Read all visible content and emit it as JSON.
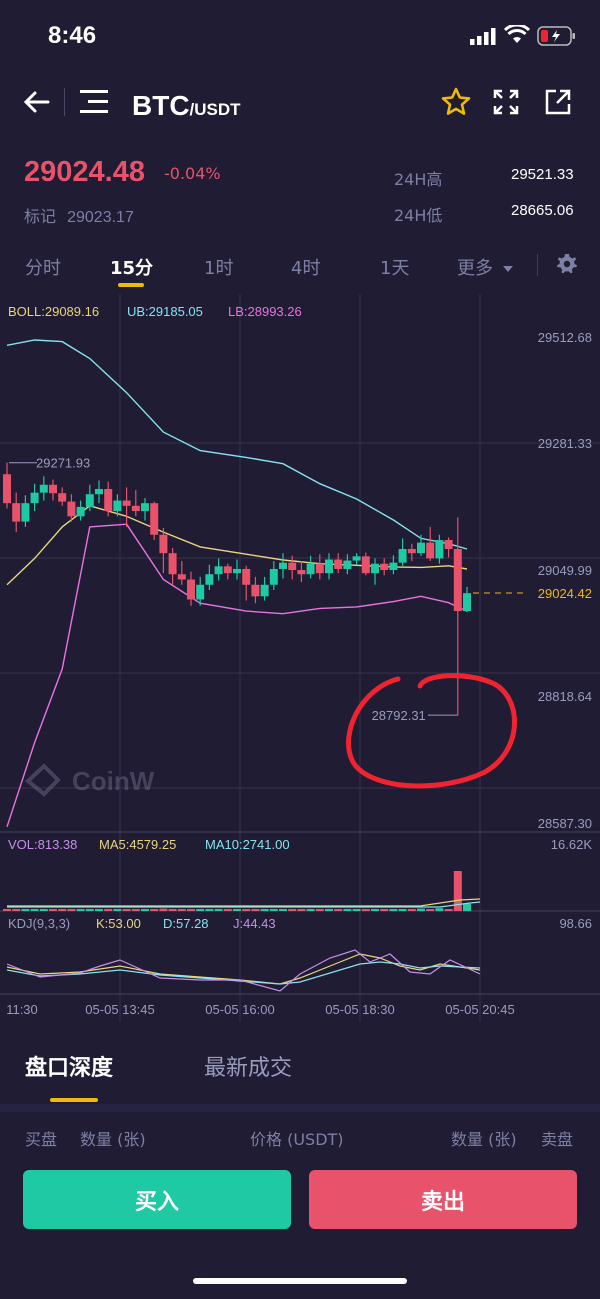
{
  "status_bar": {
    "time": "8:46"
  },
  "header": {
    "pair_base": "BTC",
    "pair_quote": "/USDT"
  },
  "ticker": {
    "last_price": "29024.48",
    "change_pct": "-0.04%",
    "mark_label": "标记",
    "mark_price": "29023.17",
    "high_label": "24H高",
    "high_value": "29521.33",
    "low_label": "24H低",
    "low_value": "28665.06"
  },
  "interval_tabs": [
    {
      "label": "分时"
    },
    {
      "label": "15分",
      "active": true
    },
    {
      "label": "1时"
    },
    {
      "label": "4时"
    },
    {
      "label": "1天"
    },
    {
      "label": "更多"
    }
  ],
  "chart_data": {
    "type": "candlestick",
    "boll": {
      "label": "BOLL:29089.16",
      "ub": "UB:29185.05",
      "lb": "LB:28993.26"
    },
    "price_axis": [
      "29512.68",
      "29281.33",
      "29049.99",
      "28818.64",
      "28587.30"
    ],
    "price_range": [
      28587.3,
      29512.68
    ],
    "last_price_tag": "29024.42",
    "max_label": "29271.93",
    "min_label": "28792.31",
    "watermark": "CoinW",
    "volume": {
      "vol": "VOL:813.38",
      "ma5": "MA5:4579.25",
      "ma10": "MA10:2741.00",
      "max": "16.62K"
    },
    "kdj": {
      "label": "KDJ(9,3,3)",
      "k": "K:53.00",
      "d": "D:57.28",
      "j": "J:44.43",
      "max": "98.66"
    },
    "time_axis": [
      "11:30",
      "05-05 13:45",
      "05-05 16:00",
      "05-05 18:30",
      "05-05 20:45"
    ],
    "candles": [
      [
        29250,
        29195,
        29272,
        29185
      ],
      [
        29195,
        29160,
        29215,
        29140
      ],
      [
        29160,
        29195,
        29210,
        29150
      ],
      [
        29195,
        29215,
        29232,
        29180
      ],
      [
        29215,
        29230,
        29246,
        29200
      ],
      [
        29230,
        29214,
        29240,
        29200
      ],
      [
        29214,
        29198,
        29225,
        29190
      ],
      [
        29198,
        29170,
        29212,
        29160
      ],
      [
        29170,
        29188,
        29200,
        29162
      ],
      [
        29188,
        29212,
        29230,
        29180
      ],
      [
        29212,
        29222,
        29238,
        29195
      ],
      [
        29222,
        29180,
        29236,
        29170
      ],
      [
        29180,
        29200,
        29212,
        29170
      ],
      [
        29200,
        29190,
        29225,
        29150
      ],
      [
        29190,
        29180,
        29220,
        29170
      ],
      [
        29180,
        29195,
        29205,
        29162
      ],
      [
        29195,
        29135,
        29198,
        29125
      ],
      [
        29135,
        29100,
        29148,
        29062
      ],
      [
        29100,
        29060,
        29110,
        29040
      ],
      [
        29060,
        29050,
        29085,
        29040
      ],
      [
        29050,
        29012,
        29065,
        29000
      ],
      [
        29012,
        29040,
        29055,
        29000
      ],
      [
        29040,
        29060,
        29078,
        29030
      ],
      [
        29060,
        29075,
        29090,
        29048
      ],
      [
        29075,
        29062,
        29080,
        29050
      ],
      [
        29062,
        29070,
        29088,
        29050
      ],
      [
        29070,
        29040,
        29076,
        29010
      ],
      [
        29040,
        29018,
        29055,
        29005
      ],
      [
        29018,
        29040,
        29055,
        29010
      ],
      [
        29040,
        29070,
        29085,
        29030
      ],
      [
        29070,
        29082,
        29100,
        29052
      ],
      [
        29082,
        29068,
        29095,
        29050
      ],
      [
        29068,
        29060,
        29085,
        29045
      ],
      [
        29060,
        29080,
        29095,
        29052
      ],
      [
        29080,
        29062,
        29098,
        29050
      ],
      [
        29062,
        29088,
        29100,
        29050
      ],
      [
        29088,
        29070,
        29100,
        29062
      ],
      [
        29070,
        29086,
        29098,
        29060
      ],
      [
        29086,
        29094,
        29100,
        29078
      ],
      [
        29094,
        29062,
        29101,
        29058
      ],
      [
        29062,
        29080,
        29090,
        29040
      ],
      [
        29080,
        29068,
        29090,
        29058
      ],
      [
        29068,
        29082,
        29096,
        29060
      ],
      [
        29082,
        29108,
        29128,
        29076
      ],
      [
        29108,
        29100,
        29118,
        29085
      ],
      [
        29100,
        29120,
        29135,
        29095
      ],
      [
        29120,
        29090,
        29150,
        29085
      ],
      [
        29090,
        29125,
        29135,
        29080
      ],
      [
        29125,
        29108,
        29130,
        29092
      ],
      [
        29108,
        28990,
        29168,
        28792
      ],
      [
        28990,
        29024,
        29036,
        28988
      ]
    ],
    "bb_upper": [
      29495,
      29505,
      29502,
      29470,
      29405,
      29330,
      29295,
      29282,
      29270,
      29232,
      29203,
      29163,
      29128,
      29118,
      29108
    ],
    "bb_middle": [
      29040,
      29090,
      29150,
      29190,
      29170,
      29140,
      29112,
      29098,
      29087,
      29080,
      29077,
      29074,
      29073,
      29076,
      29070
    ],
    "bb_lower": [
      28580,
      28740,
      28880,
      29150,
      29155,
      29050,
      29005,
      28990,
      28985,
      28995,
      28998,
      29008,
      29018,
      29006,
      28990
    ],
    "bb_x": [
      0,
      3,
      6,
      9,
      13,
      17,
      21,
      26,
      30,
      34,
      38,
      42,
      45,
      48,
      50
    ],
    "volume_bars": [
      0.04,
      0.03,
      0.03,
      0.03,
      0.03,
      0.03,
      0.03,
      0.03,
      0.03,
      0.03,
      0.03,
      0.03,
      0.03,
      0.03,
      0.03,
      0.03,
      0.04,
      0.06,
      0.05,
      0.03,
      0.03,
      0.03,
      0.03,
      0.03,
      0.03,
      0.03,
      0.04,
      0.04,
      0.03,
      0.04,
      0.03,
      0.03,
      0.03,
      0.03,
      0.03,
      0.04,
      0.03,
      0.03,
      0.03,
      0.03,
      0.03,
      0.03,
      0.03,
      0.04,
      0.04,
      0.06,
      0.05,
      0.07,
      0.05,
      1.0,
      0.18
    ]
  },
  "orderbook": {
    "tabs": [
      {
        "label": "盘口深度",
        "active": true
      },
      {
        "label": "最新成交"
      }
    ],
    "headers": {
      "buy_side": "买盘",
      "qty_left": "数量 (张)",
      "price": "价格 (USDT)",
      "qty_right": "数量 (张)",
      "sell_side": "卖盘"
    }
  },
  "actions": {
    "buy": "买入",
    "sell": "卖出"
  },
  "colors": {
    "up": "#1ec9a3",
    "down": "#e8526b",
    "accent": "#f0b90b",
    "bg": "#1f1c33",
    "annotation": "#ef2430"
  }
}
